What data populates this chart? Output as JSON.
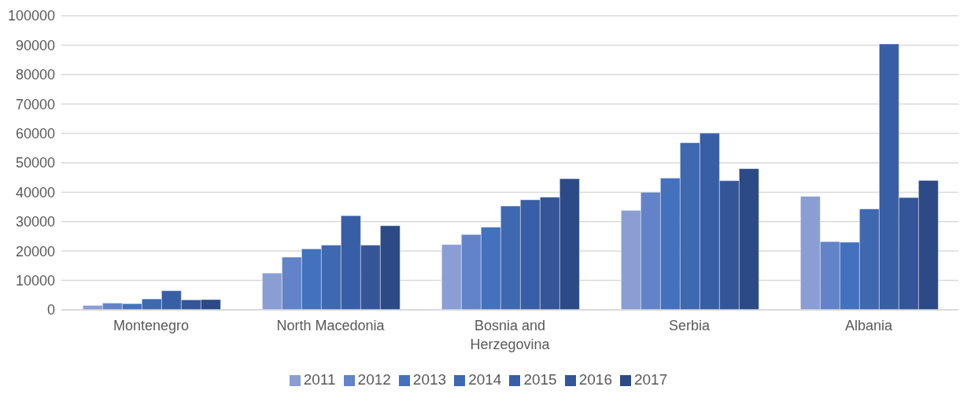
{
  "chart_data": {
    "type": "bar",
    "categories": [
      "Montenegro",
      "North Macedonia",
      "Bosnia and Herzegovina",
      "Serbia",
      "Albania"
    ],
    "series": [
      {
        "name": "2011",
        "color": "#8a9ed4",
        "values": [
          1500,
          12500,
          22200,
          33800,
          38600
        ]
      },
      {
        "name": "2012",
        "color": "#6283c7",
        "values": [
          2300,
          17900,
          25600,
          40000,
          23200
        ]
      },
      {
        "name": "2013",
        "color": "#4371bd",
        "values": [
          2100,
          20700,
          28100,
          44800,
          23000
        ]
      },
      {
        "name": "2014",
        "color": "#3e68b0",
        "values": [
          3700,
          22000,
          35300,
          56800,
          34300
        ]
      },
      {
        "name": "2015",
        "color": "#385fa6",
        "values": [
          6500,
          32000,
          37400,
          60100,
          90400
        ]
      },
      {
        "name": "2016",
        "color": "#345597",
        "values": [
          3400,
          22000,
          38300,
          43900,
          38200
        ]
      },
      {
        "name": "2017",
        "color": "#2c4a85",
        "values": [
          3500,
          28600,
          44600,
          48000,
          44000
        ]
      }
    ],
    "ylim": [
      0,
      100000
    ],
    "yticks": [
      0,
      10000,
      20000,
      30000,
      40000,
      50000,
      60000,
      70000,
      80000,
      90000,
      100000
    ],
    "grid": "y",
    "legend": "bottom"
  }
}
